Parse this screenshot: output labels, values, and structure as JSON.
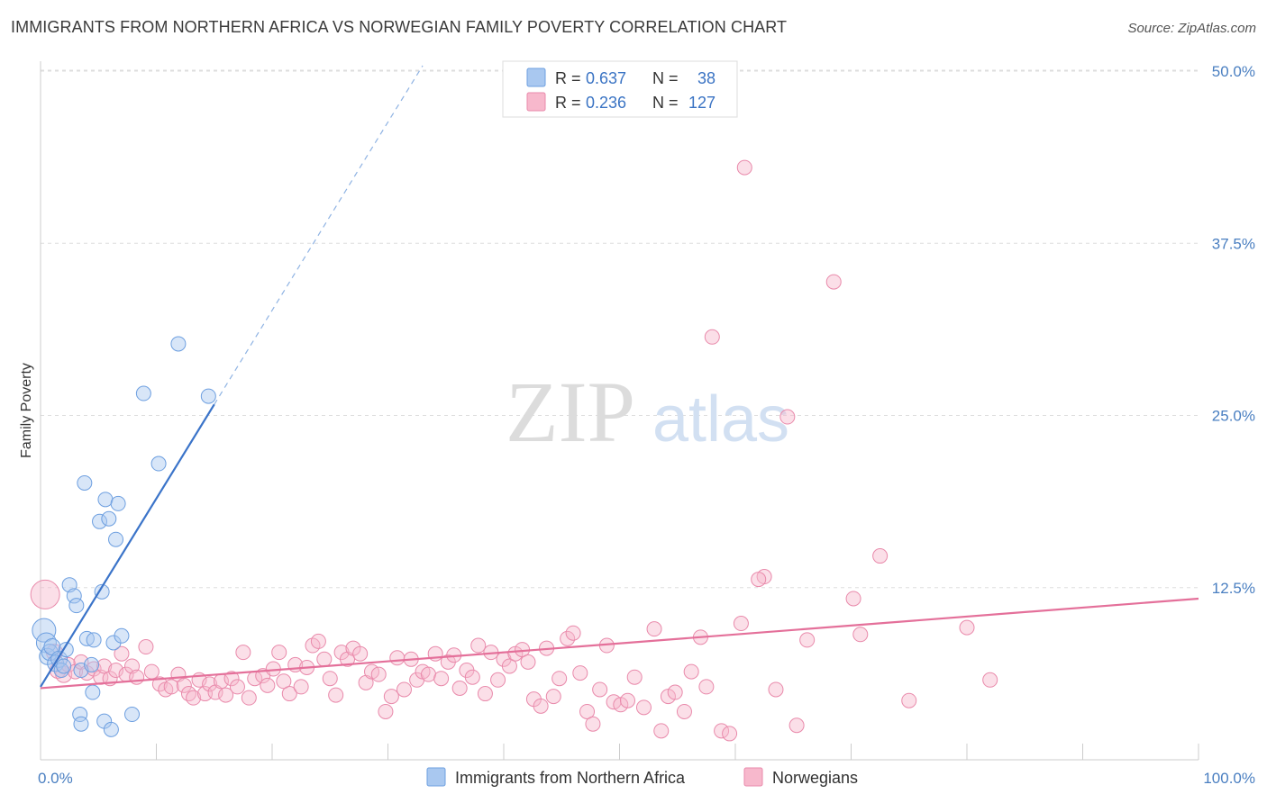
{
  "title": "IMMIGRANTS FROM NORTHERN AFRICA VS NORWEGIAN FAMILY POVERTY CORRELATION CHART",
  "source": "Source: ZipAtlas.com",
  "watermark": {
    "zip": "ZIP",
    "atlas": "atlas"
  },
  "chart_data": {
    "type": "scatter",
    "ylabel": "Family Poverty",
    "xlim": [
      0,
      100
    ],
    "ylim": [
      0,
      52
    ],
    "x_tick_labels": [
      "0.0%",
      "100.0%"
    ],
    "y_ticks": [
      12.5,
      25.0,
      37.5,
      50.0
    ],
    "y_tick_labels": [
      "12.5%",
      "25.0%",
      "37.5%",
      "50.0%"
    ],
    "grid": true,
    "legend_top": [
      {
        "r_label": "R = ",
        "r_value": "0.637",
        "n_label": "N = ",
        "n_value": "38",
        "color": "#a9c8f0",
        "stroke": "#6d9fe0"
      },
      {
        "r_label": "R = ",
        "r_value": "0.236",
        "n_label": "N = ",
        "n_value": "127",
        "color": "#f7b8cc",
        "stroke": "#e98aab"
      }
    ],
    "legend_bottom": [
      {
        "name": "Immigrants from Northern Africa",
        "color": "#a9c8f0",
        "stroke": "#6d9fe0"
      },
      {
        "name": "Norwegians",
        "color": "#f7b8cc",
        "stroke": "#e98aab"
      }
    ],
    "series": [
      {
        "name": "Immigrants from Northern Africa",
        "color": "#a9c8f0",
        "stroke": "#6d9fe0",
        "line_color": "#3b74c9",
        "trend": {
          "x0": 0,
          "y0": 5.3,
          "x1": 15,
          "y1": 25.8,
          "dash_to_x": 33
        },
        "points": [
          [
            0.3,
            9.4,
            13
          ],
          [
            0.5,
            8.5,
            11
          ],
          [
            0.6,
            7.5,
            9
          ],
          [
            0.8,
            7.8,
            9
          ],
          [
            1.0,
            8.2,
            9
          ],
          [
            1.3,
            7.0,
            9
          ],
          [
            1.6,
            7.3,
            9
          ],
          [
            1.8,
            6.5,
            8
          ],
          [
            2.0,
            6.8,
            8
          ],
          [
            2.2,
            8.0,
            8
          ],
          [
            2.5,
            12.7,
            8
          ],
          [
            2.9,
            11.9,
            8
          ],
          [
            3.1,
            11.2,
            8
          ],
          [
            3.5,
            6.5,
            8
          ],
          [
            3.4,
            3.3,
            8
          ],
          [
            3.5,
            2.6,
            8
          ],
          [
            3.8,
            20.1,
            8
          ],
          [
            4.0,
            8.8,
            8
          ],
          [
            4.5,
            4.9,
            8
          ],
          [
            4.4,
            6.9,
            8
          ],
          [
            4.6,
            8.7,
            8
          ],
          [
            5.1,
            17.3,
            8
          ],
          [
            5.3,
            12.2,
            8
          ],
          [
            5.6,
            18.9,
            8
          ],
          [
            5.5,
            2.8,
            8
          ],
          [
            5.9,
            17.5,
            8
          ],
          [
            6.1,
            2.2,
            8
          ],
          [
            6.3,
            8.5,
            8
          ],
          [
            6.5,
            16.0,
            8
          ],
          [
            6.7,
            18.6,
            8
          ],
          [
            7.0,
            9.0,
            8
          ],
          [
            7.9,
            3.3,
            8
          ],
          [
            8.9,
            26.6,
            8
          ],
          [
            10.2,
            21.5,
            8
          ],
          [
            11.9,
            30.2,
            8
          ],
          [
            14.5,
            26.4,
            8
          ]
        ]
      },
      {
        "name": "Norwegians",
        "color": "#f7b8cc",
        "stroke": "#e98aab",
        "line_color": "#e4709a",
        "trend": {
          "x0": 0,
          "y0": 5.2,
          "x1": 100,
          "y1": 11.7
        },
        "points": [
          [
            0.4,
            12.0,
            16
          ],
          [
            1.2,
            7.8,
            9
          ],
          [
            1.5,
            6.5,
            9
          ],
          [
            2.0,
            6.2,
            9
          ],
          [
            2.4,
            6.9,
            8
          ],
          [
            3.0,
            6.4,
            8
          ],
          [
            3.5,
            7.1,
            8
          ],
          [
            4.0,
            6.3,
            8
          ],
          [
            4.6,
            6.6,
            8
          ],
          [
            5.2,
            6.0,
            8
          ],
          [
            5.5,
            6.8,
            8
          ],
          [
            6.0,
            5.9,
            8
          ],
          [
            6.5,
            6.5,
            8
          ],
          [
            7.0,
            7.7,
            8
          ],
          [
            7.4,
            6.2,
            8
          ],
          [
            7.9,
            6.8,
            8
          ],
          [
            8.3,
            6.0,
            8
          ],
          [
            9.1,
            8.2,
            8
          ],
          [
            9.6,
            6.4,
            8
          ],
          [
            10.3,
            5.5,
            8
          ],
          [
            10.8,
            5.1,
            8
          ],
          [
            11.3,
            5.3,
            8
          ],
          [
            11.9,
            6.2,
            8
          ],
          [
            12.4,
            5.4,
            8
          ],
          [
            12.8,
            4.8,
            8
          ],
          [
            13.2,
            4.5,
            8
          ],
          [
            13.7,
            5.8,
            8
          ],
          [
            14.2,
            4.8,
            8
          ],
          [
            14.6,
            5.5,
            8
          ],
          [
            15.1,
            4.9,
            8
          ],
          [
            15.6,
            5.7,
            8
          ],
          [
            16.0,
            4.7,
            8
          ],
          [
            16.5,
            5.9,
            8
          ],
          [
            17.0,
            5.3,
            8
          ],
          [
            17.5,
            7.8,
            8
          ],
          [
            18.0,
            4.5,
            8
          ],
          [
            18.5,
            5.9,
            8
          ],
          [
            19.2,
            6.1,
            8
          ],
          [
            19.6,
            5.4,
            8
          ],
          [
            20.1,
            6.6,
            8
          ],
          [
            20.6,
            7.8,
            8
          ],
          [
            21.0,
            5.7,
            8
          ],
          [
            21.5,
            4.8,
            8
          ],
          [
            22.0,
            6.9,
            8
          ],
          [
            22.5,
            5.3,
            8
          ],
          [
            23.0,
            6.7,
            8
          ],
          [
            23.5,
            8.3,
            8
          ],
          [
            24.0,
            8.6,
            8
          ],
          [
            24.5,
            7.3,
            8
          ],
          [
            25.0,
            5.9,
            8
          ],
          [
            25.5,
            4.7,
            8
          ],
          [
            26.0,
            7.8,
            8
          ],
          [
            26.5,
            7.3,
            8
          ],
          [
            27.0,
            8.1,
            8
          ],
          [
            27.6,
            7.7,
            8
          ],
          [
            28.1,
            5.6,
            8
          ],
          [
            28.6,
            6.4,
            8
          ],
          [
            29.2,
            6.2,
            8
          ],
          [
            29.8,
            3.5,
            8
          ],
          [
            30.3,
            4.6,
            8
          ],
          [
            30.8,
            7.4,
            8
          ],
          [
            31.4,
            5.1,
            8
          ],
          [
            32.0,
            7.3,
            8
          ],
          [
            32.5,
            5.8,
            8
          ],
          [
            33.0,
            6.4,
            8
          ],
          [
            33.5,
            6.2,
            8
          ],
          [
            34.1,
            7.7,
            8
          ],
          [
            34.6,
            5.9,
            8
          ],
          [
            35.2,
            7.1,
            8
          ],
          [
            35.7,
            7.6,
            8
          ],
          [
            36.2,
            5.2,
            8
          ],
          [
            36.8,
            6.5,
            8
          ],
          [
            37.3,
            6.0,
            8
          ],
          [
            37.8,
            8.3,
            8
          ],
          [
            38.4,
            4.8,
            8
          ],
          [
            38.9,
            7.8,
            8
          ],
          [
            39.5,
            5.8,
            8
          ],
          [
            40.0,
            7.3,
            8
          ],
          [
            40.5,
            6.8,
            8
          ],
          [
            41.0,
            7.7,
            8
          ],
          [
            41.6,
            8.0,
            8
          ],
          [
            42.1,
            7.1,
            8
          ],
          [
            42.6,
            4.4,
            8
          ],
          [
            43.2,
            3.9,
            8
          ],
          [
            43.7,
            8.1,
            8
          ],
          [
            44.3,
            4.6,
            8
          ],
          [
            44.8,
            5.9,
            8
          ],
          [
            45.5,
            8.8,
            8
          ],
          [
            46.0,
            9.2,
            8
          ],
          [
            46.6,
            6.3,
            8
          ],
          [
            47.2,
            3.5,
            8
          ],
          [
            47.7,
            2.6,
            8
          ],
          [
            48.3,
            5.1,
            8
          ],
          [
            48.9,
            8.3,
            8
          ],
          [
            49.5,
            4.2,
            8
          ],
          [
            50.1,
            4.0,
            8
          ],
          [
            50.7,
            4.3,
            8
          ],
          [
            51.3,
            6.0,
            8
          ],
          [
            52.1,
            3.8,
            8
          ],
          [
            53.0,
            9.5,
            8
          ],
          [
            53.6,
            2.1,
            8
          ],
          [
            54.2,
            4.6,
            8
          ],
          [
            54.8,
            4.9,
            8
          ],
          [
            55.6,
            3.5,
            8
          ],
          [
            56.2,
            6.4,
            8
          ],
          [
            57.0,
            8.9,
            8
          ],
          [
            57.5,
            5.3,
            8
          ],
          [
            58.0,
            30.7,
            8
          ],
          [
            58.8,
            2.1,
            8
          ],
          [
            59.5,
            1.9,
            8
          ],
          [
            60.5,
            9.9,
            8
          ],
          [
            62.5,
            13.3,
            8
          ],
          [
            60.8,
            43.0,
            8
          ],
          [
            62.0,
            13.1,
            8
          ],
          [
            63.5,
            5.1,
            8
          ],
          [
            64.5,
            24.9,
            8
          ],
          [
            65.3,
            2.5,
            8
          ],
          [
            66.2,
            8.7,
            8
          ],
          [
            68.5,
            34.7,
            8
          ],
          [
            70.2,
            11.7,
            8
          ],
          [
            70.8,
            9.1,
            8
          ],
          [
            72.5,
            14.8,
            8
          ],
          [
            75.0,
            4.3,
            8
          ],
          [
            80.0,
            9.6,
            8
          ],
          [
            82.0,
            5.8,
            8
          ]
        ]
      }
    ]
  }
}
